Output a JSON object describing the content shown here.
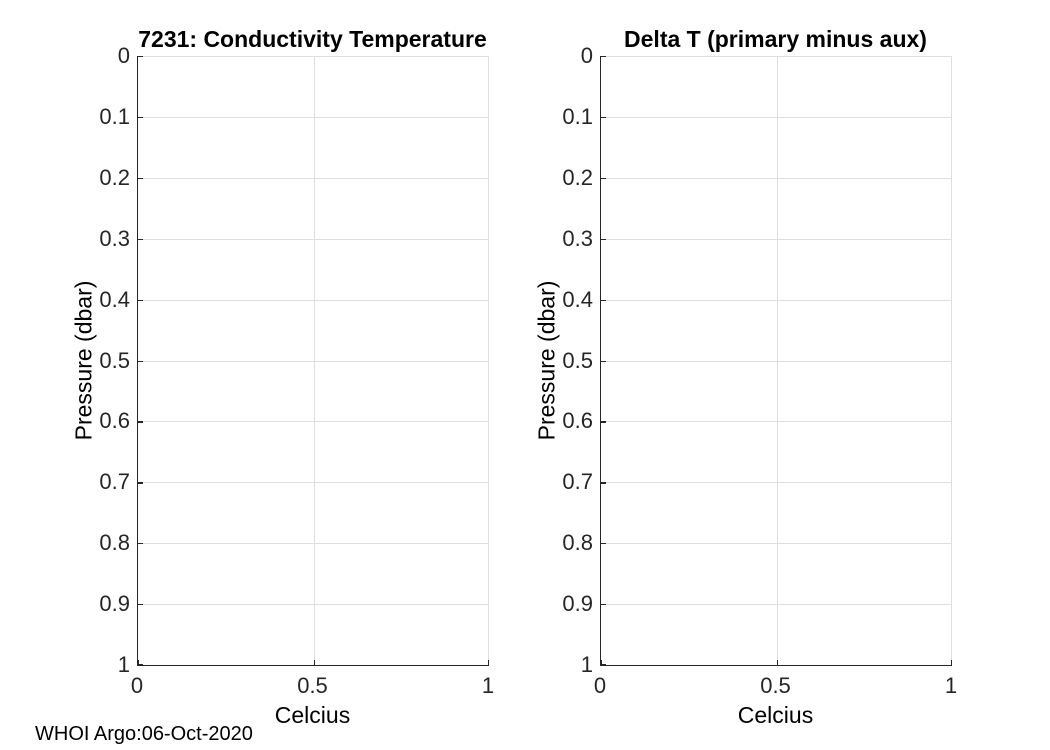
{
  "figure": {
    "background": "#ffffff",
    "watermark": "WHOI Argo:06-Oct-2020"
  },
  "colors": {
    "axis": "#262626",
    "grid": "#dedede",
    "title": "#000000",
    "tick_text": "#262626"
  },
  "chart_data": [
    {
      "type": "line",
      "title": "7231: Conductivity Temperature",
      "xlabel": "Celcius",
      "ylabel": "Pressure (dbar)",
      "xlim": [
        0,
        1
      ],
      "ylim": [
        0,
        1
      ],
      "ydir": "reverse",
      "grid": true,
      "box": false,
      "xticks": [
        0,
        0.5,
        1
      ],
      "xtick_labels": [
        "0",
        "0.5",
        "1"
      ],
      "yticks": [
        0,
        0.1,
        0.2,
        0.3,
        0.4,
        0.5,
        0.6,
        0.7,
        0.8,
        0.9,
        1
      ],
      "ytick_labels": [
        "0",
        "0.1",
        "0.2",
        "0.3",
        "0.4",
        "0.5",
        "0.6",
        "0.7",
        "0.8",
        "0.9",
        "1"
      ],
      "series": []
    },
    {
      "type": "line",
      "title": "Delta T (primary minus aux)",
      "xlabel": "Celcius",
      "ylabel": "Pressure (dbar)",
      "xlim": [
        0,
        1
      ],
      "ylim": [
        0,
        1
      ],
      "ydir": "reverse",
      "grid": true,
      "box": false,
      "xticks": [
        0,
        0.5,
        1
      ],
      "xtick_labels": [
        "0",
        "0.5",
        "1"
      ],
      "yticks": [
        0,
        0.1,
        0.2,
        0.3,
        0.4,
        0.5,
        0.6,
        0.7,
        0.8,
        0.9,
        1
      ],
      "ytick_labels": [
        "0",
        "0.1",
        "0.2",
        "0.3",
        "0.4",
        "0.5",
        "0.6",
        "0.7",
        "0.8",
        "0.9",
        "1"
      ],
      "series": []
    }
  ]
}
